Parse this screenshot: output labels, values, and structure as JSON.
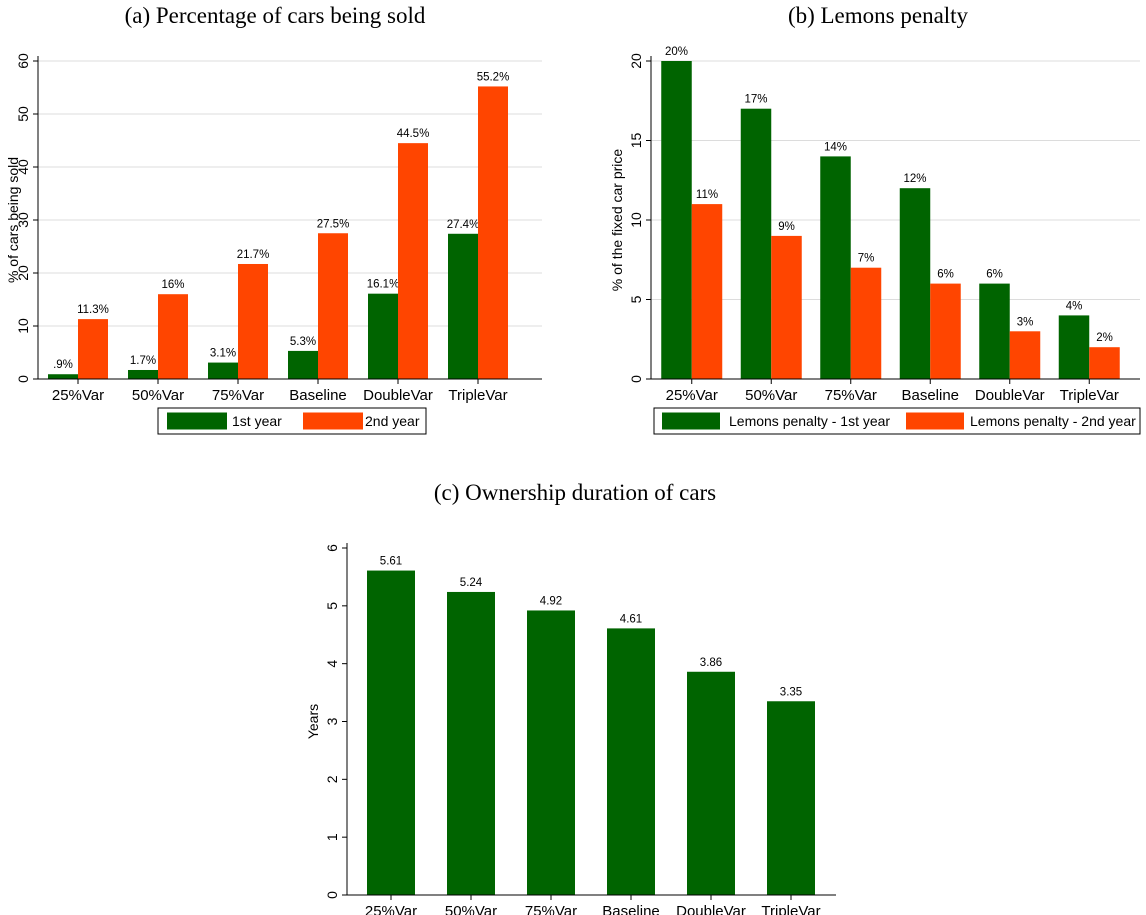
{
  "chart_data": [
    {
      "type": "bar",
      "title": "(a) Percentage of cars being sold",
      "ylabel": "% of cars being sold",
      "xlabel": "",
      "ylim": [
        0,
        60
      ],
      "yticks": [
        0,
        10,
        20,
        30,
        40,
        50,
        60
      ],
      "categories": [
        "25%Var",
        "50%Var",
        "75%Var",
        "Baseline",
        "DoubleVar",
        "TripleVar"
      ],
      "series": [
        {
          "name": "1st year",
          "color": "#006400",
          "values": [
            0.9,
            1.7,
            3.1,
            5.3,
            16.1,
            27.4
          ],
          "labels": [
            ".9%",
            "1.7%",
            "3.1%",
            "5.3%",
            "16.1%",
            "27.4%"
          ]
        },
        {
          "name": "2nd year",
          "color": "#ff4500",
          "values": [
            11.3,
            16,
            21.7,
            27.5,
            44.5,
            55.2
          ],
          "labels": [
            "11.3%",
            "16%",
            "21.7%",
            "27.5%",
            "44.5%",
            "55.2%"
          ]
        }
      ],
      "grid": true,
      "legend": "bottom"
    },
    {
      "type": "bar",
      "title": "(b) Lemons penalty",
      "ylabel": "% of the fixed car price",
      "xlabel": "",
      "ylim": [
        0,
        20
      ],
      "yticks": [
        0,
        5,
        10,
        15,
        20
      ],
      "categories": [
        "25%Var",
        "50%Var",
        "75%Var",
        "Baseline",
        "DoubleVar",
        "TripleVar"
      ],
      "series": [
        {
          "name": "Lemons penalty - 1st year",
          "color": "#006400",
          "values": [
            20,
            17,
            14,
            12,
            6,
            4
          ],
          "labels": [
            "20%",
            "17%",
            "14%",
            "12%",
            "6%",
            "4%"
          ]
        },
        {
          "name": "Lemons penalty - 2nd year",
          "color": "#ff4500",
          "values": [
            11,
            9,
            7,
            6,
            3,
            2
          ],
          "labels": [
            "11%",
            "9%",
            "7%",
            "6%",
            "3%",
            "2%"
          ]
        }
      ],
      "grid": true,
      "legend": "bottom"
    },
    {
      "type": "bar",
      "title": "(c) Ownership duration of cars",
      "ylabel": "Years",
      "xlabel": "",
      "ylim": [
        0,
        6
      ],
      "yticks": [
        0,
        1,
        2,
        3,
        4,
        5,
        6
      ],
      "categories": [
        "25%Var",
        "50%Var",
        "75%Var",
        "Baseline",
        "DoubleVar",
        "TripleVar"
      ],
      "series": [
        {
          "color": "#006400",
          "values": [
            5.61,
            5.24,
            4.92,
            4.61,
            3.86,
            3.35
          ],
          "labels": [
            "5.61",
            "5.24",
            "4.92",
            "4.61",
            "3.86",
            "3.35"
          ]
        }
      ],
      "grid": false,
      "legend": "none"
    }
  ]
}
